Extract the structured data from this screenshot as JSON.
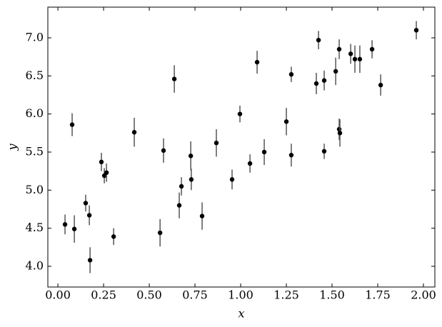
{
  "chart_data": {
    "type": "errorbar",
    "xlabel": "x",
    "ylabel": "y",
    "xlim": [
      -0.055,
      2.0625
    ],
    "ylim": [
      3.728,
      7.403
    ],
    "xticks": [
      {
        "value": 0,
        "label": "0.00"
      },
      {
        "value": 0.25,
        "label": "0.25"
      },
      {
        "value": 0.5,
        "label": "0.50"
      },
      {
        "value": 0.75,
        "label": "0.75"
      },
      {
        "value": 1,
        "label": "1.00"
      },
      {
        "value": 1.25,
        "label": "1.25"
      },
      {
        "value": 1.5,
        "label": "1.50"
      },
      {
        "value": 1.75,
        "label": "1.75"
      },
      {
        "value": 2,
        "label": "2.00"
      }
    ],
    "yticks": [
      {
        "value": 4,
        "label": "4.0"
      },
      4.5,
      {
        "value": 5,
        "label": "5.0"
      },
      5.5,
      {
        "value": 6,
        "label": "6.0"
      },
      6.5,
      {
        "value": 7,
        "label": "7.0"
      }
    ],
    "color": "#000000",
    "errcolor": "#555555",
    "x": [
      0.039,
      0.09,
      0.078,
      0.152,
      0.172,
      0.176,
      0.238,
      0.254,
      0.266,
      0.305,
      0.418,
      0.559,
      0.578,
      0.637,
      0.664,
      0.676,
      0.727,
      0.73,
      0.789,
      0.867,
      0.953,
      0.996,
      1.051,
      1.09,
      1.129,
      1.25,
      1.277,
      1.277,
      1.414,
      1.426,
      1.457,
      1.457,
      1.52,
      1.539,
      1.539,
      1.543,
      1.602,
      1.625,
      1.652,
      1.719,
      1.766,
      1.961
    ],
    "values": [
      4.55,
      4.49,
      5.86,
      4.83,
      4.67,
      4.08,
      5.37,
      5.19,
      5.23,
      4.39,
      5.76,
      4.44,
      5.52,
      6.46,
      4.8,
      5.05,
      5.45,
      5.14,
      4.66,
      5.62,
      5.14,
      6.0,
      5.35,
      6.68,
      5.5,
      5.9,
      6.52,
      5.46,
      6.4,
      6.97,
      6.44,
      5.51,
      6.56,
      6.85,
      5.8,
      5.75,
      6.79,
      6.72,
      6.72,
      6.85,
      6.38,
      7.1
    ],
    "errors": [
      0.13,
      0.18,
      0.15,
      0.11,
      0.13,
      0.17,
      0.12,
      0.1,
      0.12,
      0.11,
      0.19,
      0.18,
      0.16,
      0.18,
      0.17,
      0.12,
      0.19,
      0.14,
      0.18,
      0.18,
      0.13,
      0.11,
      0.12,
      0.15,
      0.17,
      0.18,
      0.1,
      0.15,
      0.14,
      0.12,
      0.13,
      0.1,
      0.18,
      0.13,
      0.14,
      0.18,
      0.13,
      0.18,
      0.18,
      0.12,
      0.14,
      0.12
    ]
  }
}
